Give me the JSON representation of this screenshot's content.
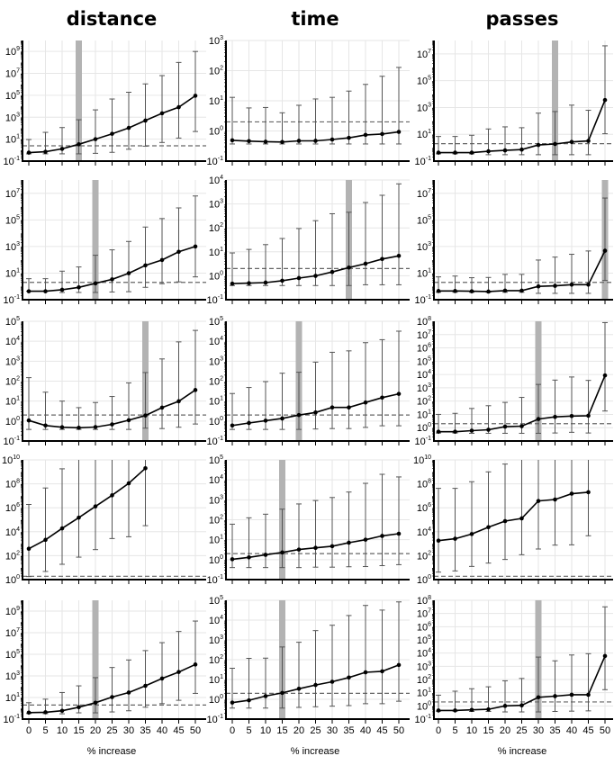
{
  "chart_data": {
    "type": "line",
    "column_titles": [
      "distance",
      "time",
      "passes"
    ],
    "xlabel": "% increase",
    "x": [
      0,
      5,
      10,
      15,
      20,
      25,
      30,
      35,
      40,
      45,
      50
    ],
    "yscale": "log",
    "grid": true,
    "colors": {
      "line": "#000000",
      "errorbar": "#555555",
      "shade": "#b3b3b3",
      "reference": "#666666",
      "grid": "#e6e6e6"
    },
    "panels": [
      {
        "row": 1,
        "column": "distance",
        "ylim": [
          0.1,
          10000000000.0
        ],
        "yticks": [
          0.1,
          10,
          1000,
          100000.0,
          10000000.0,
          1000000000.0
        ],
        "shaded_x": 15,
        "reference_y": 2.5,
        "y": [
          0.59,
          0.71,
          1.3,
          3.4,
          10,
          31,
          107,
          500,
          2300,
          8300,
          91000
        ],
        "upper": [
          9.3,
          42,
          115,
          590,
          4700,
          46000,
          190000,
          1100000.0,
          6300000.0,
          100000000.0,
          1000000000.0
        ],
        "lower": [
          0.46,
          0.46,
          0.46,
          0.46,
          0.51,
          0.63,
          1.2,
          2.3,
          5,
          12.6,
          50
        ]
      },
      {
        "row": 1,
        "column": "time",
        "ylim": [
          0.1,
          1000
        ],
        "yticks": [
          0.1,
          1,
          10,
          100,
          1000
        ],
        "shaded_x": null,
        "reference_y": 2,
        "y": [
          0.49,
          0.46,
          0.44,
          0.43,
          0.47,
          0.47,
          0.52,
          0.59,
          0.74,
          0.79,
          0.93
        ],
        "upper": [
          13,
          5.8,
          6,
          4,
          7.1,
          11.5,
          13,
          21,
          35,
          65,
          128
        ],
        "lower": [
          0.37,
          0.37,
          0.37,
          0.37,
          0.37,
          0.37,
          0.37,
          0.37,
          0.37,
          0.37,
          0.37
        ]
      },
      {
        "row": 1,
        "column": "passes",
        "ylim": [
          0.1,
          100000000.0
        ],
        "yticks": [
          0.1,
          10,
          1000,
          100000.0,
          10000000.0
        ],
        "shaded_x": 35,
        "reference_y": 2,
        "y": [
          0.43,
          0.43,
          0.43,
          0.54,
          0.63,
          0.72,
          1.6,
          1.9,
          2.7,
          3.2,
          3600
        ],
        "upper": [
          6.9,
          6.9,
          8.5,
          25,
          36,
          31,
          380,
          500,
          1500,
          620,
          40000000.0
        ],
        "lower": [
          0.35,
          0.35,
          0.35,
          0.3,
          0.3,
          0.3,
          0.3,
          0.3,
          0.3,
          0.3,
          11
        ]
      },
      {
        "row": 2,
        "column": "distance",
        "ylim": [
          0.1,
          100000000.0
        ],
        "yticks": [
          0.1,
          10,
          1000,
          100000.0,
          10000000.0
        ],
        "shaded_x": 20,
        "reference_y": 2,
        "y": [
          0.43,
          0.43,
          0.56,
          0.85,
          1.7,
          3.4,
          9.8,
          38,
          96,
          400,
          1000
        ],
        "upper": [
          3.8,
          3.8,
          14,
          29,
          220,
          560,
          2400,
          29000,
          126000,
          800000,
          6300000.0
        ],
        "lower": [
          0.43,
          0.43,
          0.35,
          0.35,
          0.35,
          0.38,
          0.4,
          0.85,
          1.6,
          2.2,
          5.2
        ]
      },
      {
        "row": 2,
        "column": "time",
        "ylim": [
          0.1,
          10000
        ],
        "yticks": [
          0.1,
          1,
          10,
          100,
          1000,
          10000
        ],
        "shaded_x": 35,
        "reference_y": 2,
        "y": [
          0.47,
          0.49,
          0.52,
          0.62,
          0.8,
          0.99,
          1.44,
          2.2,
          3.2,
          5,
          6.8
        ],
        "upper": [
          9,
          12.6,
          20,
          36,
          94,
          200,
          390,
          450,
          1150,
          2300,
          6900
        ],
        "lower": [
          0.39,
          0.39,
          0.39,
          0.39,
          0.39,
          0.39,
          0.39,
          0.39,
          0.42,
          0.42,
          0.42
        ]
      },
      {
        "row": 2,
        "column": "passes",
        "ylim": [
          0.1,
          100000000.0
        ],
        "yticks": [
          0.1,
          10,
          1000,
          100000.0,
          10000000.0
        ],
        "shaded_x": 50,
        "reference_y": 2,
        "y": [
          0.45,
          0.45,
          0.43,
          0.41,
          0.48,
          0.48,
          1.0,
          1.1,
          1.35,
          1.35,
          480
        ],
        "upper": [
          5.2,
          6,
          4.5,
          4.7,
          8,
          8,
          96,
          160,
          260,
          460,
          4400000.0
        ],
        "lower": [
          0.36,
          0.36,
          0.36,
          0.36,
          0.36,
          0.36,
          0.3,
          0.3,
          0.3,
          0.3,
          2.8
        ]
      },
      {
        "row": 3,
        "column": "distance",
        "ylim": [
          0.1,
          100000.0
        ],
        "yticks": [
          0.1,
          1,
          10,
          100,
          1000,
          10000,
          100000.0
        ],
        "shaded_x": 35,
        "reference_y": 2,
        "y": [
          1.07,
          0.6,
          0.49,
          0.46,
          0.5,
          0.68,
          1.1,
          1.9,
          4.7,
          9.8,
          36
        ],
        "upper": [
          150,
          28,
          10,
          4.7,
          8.5,
          17,
          82,
          270,
          1300,
          9300,
          35000
        ],
        "lower": [
          0.38,
          0.38,
          0.38,
          0.38,
          0.38,
          0.38,
          0.38,
          0.44,
          0.42,
          0.49,
          0.71
        ]
      },
      {
        "row": 3,
        "column": "time",
        "ylim": [
          0.1,
          100000.0
        ],
        "yticks": [
          0.1,
          1,
          10,
          100,
          1000,
          10000,
          100000.0
        ],
        "shaded_x": 20,
        "reference_y": 2,
        "y": [
          0.6,
          0.8,
          1.05,
          1.35,
          2,
          2.7,
          4.8,
          4.8,
          8.5,
          15,
          23
        ],
        "upper": [
          24,
          48,
          95,
          250,
          280,
          900,
          2800,
          3300,
          8500,
          12000,
          32000
        ],
        "lower": [
          0.38,
          0.38,
          0.38,
          0.38,
          0.38,
          0.4,
          0.42,
          0.42,
          0.48,
          0.58,
          0.58
        ]
      },
      {
        "row": 3,
        "column": "passes",
        "ylim": [
          0.1,
          100000000.0
        ],
        "yticks": [
          0.1,
          1,
          10,
          100,
          1000,
          10000,
          100000.0,
          1000000.0,
          10000000.0,
          100000000.0
        ],
        "shaded_x": 30,
        "reference_y": 2,
        "y": [
          0.5,
          0.5,
          0.6,
          0.7,
          1.2,
          1.3,
          4.5,
          6.5,
          7.5,
          8,
          8500
        ],
        "upper": [
          10,
          12,
          28,
          45,
          80,
          190,
          1800,
          3800,
          6500,
          3600,
          80000000.0
        ],
        "lower": [
          0.4,
          0.4,
          0.38,
          0.38,
          0.38,
          0.38,
          0.38,
          0.4,
          0.45,
          0.4,
          18
        ]
      },
      {
        "row": 4,
        "column": "distance",
        "ylim": [
          1,
          10000000000.0
        ],
        "yticks": [
          1,
          100,
          10000,
          1000000.0,
          100000000.0,
          10000000000.0
        ],
        "shaded_x": null,
        "reference_y": 1.9,
        "y": [
          380,
          2100,
          19000,
          150000,
          1300000.0,
          11000000.0,
          110000000.0,
          2000000000.0,
          null,
          null,
          null
        ],
        "upper": [
          1900000.0,
          45000000.0,
          1800000000.0,
          10000000000.0,
          10000000000.0,
          10000000000.0,
          10000000000.0,
          10000000000.0,
          null,
          null,
          null
        ],
        "lower": [
          1.8,
          4.8,
          19,
          75,
          320,
          2700,
          3800,
          32000,
          null,
          null,
          null
        ]
      },
      {
        "row": 4,
        "column": "time",
        "ylim": [
          0.1,
          100000.0
        ],
        "yticks": [
          0.1,
          1,
          10,
          100,
          1000,
          10000,
          100000.0
        ],
        "shaded_x": 15,
        "reference_y": 2,
        "y": [
          1.05,
          1.3,
          1.75,
          2.3,
          3.2,
          3.9,
          4.7,
          7.1,
          10,
          15.5,
          20
        ],
        "upper": [
          60,
          125,
          190,
          340,
          620,
          920,
          1300,
          2450,
          6700,
          19000,
          14000
        ],
        "lower": [
          0.4,
          0.4,
          0.4,
          0.4,
          0.4,
          0.42,
          0.42,
          0.44,
          0.45,
          0.5,
          0.56
        ]
      },
      {
        "row": 4,
        "column": "passes",
        "ylim": [
          1,
          10000000000.0
        ],
        "yticks": [
          1,
          100,
          10000,
          1000000.0,
          100000000.0,
          10000000000.0
        ],
        "shaded_x": null,
        "reference_y": 1.9,
        "y": [
          1800,
          2600,
          6400,
          24000,
          77000,
          130000,
          3700000.0,
          4900000.0,
          15000000.0,
          20000000.0,
          null
        ],
        "upper": [
          42000000.0,
          42000000.0,
          150000000.0,
          1000000000.0,
          4500000000.0,
          10000000000.0,
          10000000000.0,
          10000000000.0,
          10000000000.0,
          10000000000.0,
          null
        ],
        "lower": [
          4.2,
          5.3,
          12.6,
          24,
          48,
          120,
          360,
          760,
          800,
          4600,
          null
        ]
      },
      {
        "row": 5,
        "column": "distance",
        "ylim": [
          0.1,
          10000000000.0
        ],
        "yticks": [
          0.1,
          10,
          1000,
          100000.0,
          10000000.0,
          1000000000.0
        ],
        "shaded_x": 20,
        "reference_y": 2,
        "y": [
          0.4,
          0.43,
          0.59,
          1.26,
          3.3,
          11,
          29,
          120,
          570,
          2300,
          11400
        ],
        "upper": [
          3.3,
          7,
          29,
          120,
          690,
          6000,
          30000,
          220000,
          1200000.0,
          13000000.0,
          120000000.0
        ],
        "lower": [
          0.33,
          0.32,
          0.31,
          0.38,
          0.38,
          0.46,
          0.59,
          1.26,
          2.7,
          5.5,
          24
        ]
      },
      {
        "row": 5,
        "column": "time",
        "ylim": [
          0.1,
          100000.0
        ],
        "yticks": [
          0.1,
          1,
          10,
          100,
          1000,
          10000,
          100000.0
        ],
        "shaded_x": 15,
        "reference_y": 2,
        "y": [
          0.68,
          0.89,
          1.45,
          2.1,
          3.4,
          5.3,
          7.7,
          12.6,
          23,
          26,
          54
        ],
        "upper": [
          37,
          117,
          120,
          440,
          760,
          2950,
          5500,
          17000,
          55000,
          32000,
          83000
        ],
        "lower": [
          0.36,
          0.36,
          0.36,
          0.36,
          0.39,
          0.42,
          0.45,
          0.48,
          0.6,
          0.6,
          0.8
        ]
      },
      {
        "row": 5,
        "column": "passes",
        "ylim": [
          0.1,
          100000000.0
        ],
        "yticks": [
          0.1,
          1,
          10,
          100,
          1000,
          10000,
          100000.0,
          1000000.0,
          10000000.0,
          100000000.0
        ],
        "shaded_x": 30,
        "reference_y": 2,
        "y": [
          0.45,
          0.45,
          0.5,
          0.55,
          1,
          1.1,
          4.5,
          5.5,
          7,
          7,
          6000
        ],
        "upper": [
          6.5,
          13,
          20,
          28,
          80,
          120,
          5000,
          2600,
          7200,
          9000,
          32000000.0
        ],
        "lower": [
          0.4,
          0.4,
          0.38,
          0.38,
          0.35,
          0.35,
          0.35,
          0.38,
          0.4,
          0.42,
          17
        ]
      }
    ]
  }
}
